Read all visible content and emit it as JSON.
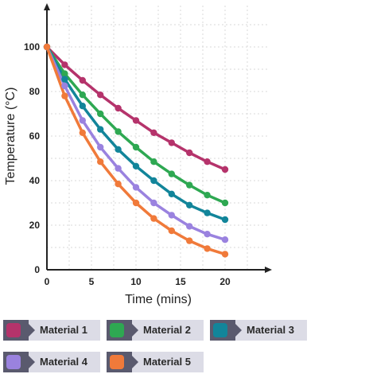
{
  "chart_data": {
    "type": "line",
    "title": "",
    "xlabel": "Time (mins)",
    "ylabel": "Temperature (°C)",
    "xlim": [
      0,
      20
    ],
    "ylim": [
      0,
      100
    ],
    "x_ticks": [
      0,
      5,
      10,
      15,
      20
    ],
    "y_ticks": [
      0,
      20,
      40,
      60,
      80,
      100
    ],
    "grid": true,
    "legend_position": "bottom",
    "x": [
      0,
      2,
      4,
      6,
      8,
      10,
      12,
      14,
      16,
      18,
      20
    ],
    "series": [
      {
        "name": "Material 1",
        "color": "#b5336b",
        "values": [
          100,
          92,
          85,
          78.5,
          72.5,
          67,
          61.5,
          57,
          52.5,
          48.5,
          45
        ]
      },
      {
        "name": "Material 2",
        "color": "#2ea852",
        "values": [
          100,
          88,
          78.5,
          70,
          62,
          55,
          48.5,
          43,
          38,
          33.5,
          30
        ]
      },
      {
        "name": "Material 3",
        "color": "#12859a",
        "values": [
          100,
          85.5,
          73.5,
          63,
          54,
          46.5,
          40,
          34,
          29,
          25.5,
          22.5
        ]
      },
      {
        "name": "Material 4",
        "color": "#9a82df",
        "values": [
          100,
          82.5,
          67,
          55,
          45.5,
          37,
          30,
          24.5,
          19.5,
          16,
          13.5
        ]
      },
      {
        "name": "Material 5",
        "color": "#f07a3a",
        "values": [
          100,
          78,
          61.5,
          48.5,
          38.5,
          30,
          23,
          17.5,
          13,
          9.5,
          7
        ]
      }
    ]
  }
}
